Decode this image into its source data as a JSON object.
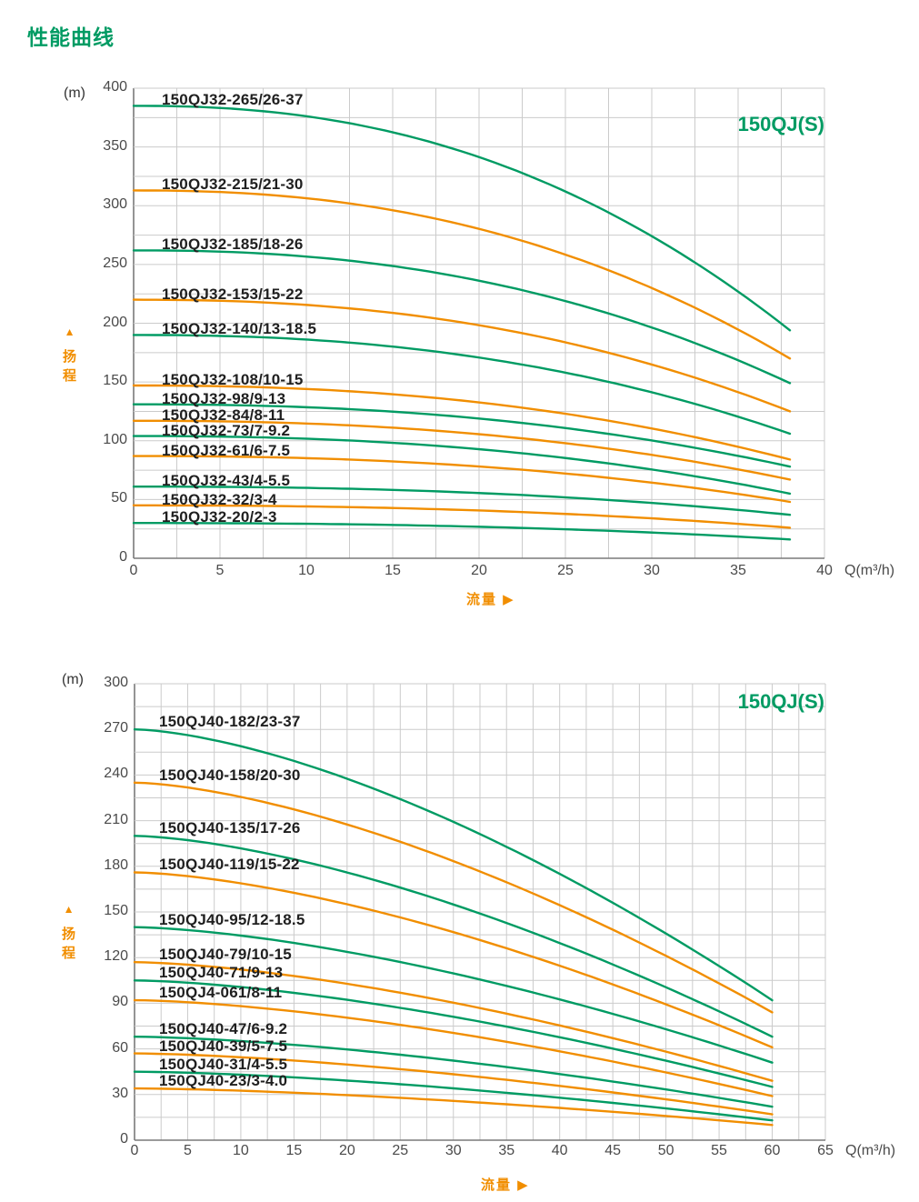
{
  "page_title": "性能曲线",
  "colors": {
    "green": "#009B63",
    "orange": "#F18E00",
    "label_text": "#1F1F1F",
    "tick_text": "#4A4A4A",
    "grid": "#CBCBCB",
    "axis": "#7A7A7A"
  },
  "chart_data": [
    {
      "type": "line",
      "title": "150QJ(S)",
      "x_axis": {
        "label": "流量",
        "direction_marker": "▶",
        "unit": "Q(m³/h)",
        "min": 0,
        "max": 40,
        "tick_step": 5,
        "grid_minor_step": 2.5,
        "tick_labels": [
          0,
          5,
          10,
          15,
          20,
          25,
          30,
          35,
          40
        ]
      },
      "y_axis": {
        "label": "扬程",
        "direction_marker": "▲",
        "unit": "(m)",
        "min": 0,
        "max": 400,
        "tick_step": 50,
        "grid_minor_step": 25,
        "tick_labels": [
          0,
          50,
          100,
          150,
          200,
          250,
          300,
          350,
          400
        ]
      },
      "grid": true,
      "legend_position": "labels-above-curves",
      "flow_end_m3h": 38,
      "curve_shape_exponent": 2.3,
      "series": [
        {
          "label": "150QJ32-265/26-37",
          "color": "green",
          "head_at_zero_flow_m": 385,
          "head_at_flow_end_m": 194
        },
        {
          "label": "150QJ32-215/21-30",
          "color": "orange",
          "head_at_zero_flow_m": 313,
          "head_at_flow_end_m": 170
        },
        {
          "label": "150QJ32-185/18-26",
          "color": "green",
          "head_at_zero_flow_m": 262,
          "head_at_flow_end_m": 149
        },
        {
          "label": "150QJ32-153/15-22",
          "color": "orange",
          "head_at_zero_flow_m": 220,
          "head_at_flow_end_m": 125
        },
        {
          "label": "150QJ32-140/13-18.5",
          "color": "green",
          "head_at_zero_flow_m": 190,
          "head_at_flow_end_m": 106
        },
        {
          "label": "150QJ32-108/10-15",
          "color": "orange",
          "head_at_zero_flow_m": 147,
          "head_at_flow_end_m": 84
        },
        {
          "label": "150QJ32-98/9-13",
          "color": "green",
          "head_at_zero_flow_m": 131,
          "head_at_flow_end_m": 78
        },
        {
          "label": "150QJ32-84/8-11",
          "color": "orange",
          "head_at_zero_flow_m": 117,
          "head_at_flow_end_m": 67
        },
        {
          "label": "150QJ32-73/7-9.2",
          "color": "green",
          "head_at_zero_flow_m": 104,
          "head_at_flow_end_m": 55
        },
        {
          "label": "150QJ32-61/6-7.5",
          "color": "orange",
          "head_at_zero_flow_m": 87,
          "head_at_flow_end_m": 48
        },
        {
          "label": "150QJ32-43/4-5.5",
          "color": "green",
          "head_at_zero_flow_m": 61,
          "head_at_flow_end_m": 37
        },
        {
          "label": "150QJ32-32/3-4",
          "color": "orange",
          "head_at_zero_flow_m": 45,
          "head_at_flow_end_m": 26
        },
        {
          "label": "150QJ32-20/2-3",
          "color": "green",
          "head_at_zero_flow_m": 30,
          "head_at_flow_end_m": 16
        }
      ]
    },
    {
      "type": "line",
      "title": "150QJ(S)",
      "x_axis": {
        "label": "流量",
        "direction_marker": "▶",
        "unit": "Q(m³/h)",
        "min": 0,
        "max": 65,
        "tick_step": 5,
        "grid_minor_step": 2.5,
        "tick_labels": [
          0,
          5,
          10,
          15,
          20,
          25,
          30,
          35,
          40,
          45,
          50,
          55,
          60,
          65
        ]
      },
      "y_axis": {
        "label": "扬程",
        "direction_marker": "▲",
        "unit": "(m)",
        "min": 0,
        "max": 300,
        "tick_step": 30,
        "grid_minor_step": 15,
        "tick_labels": [
          0,
          30,
          60,
          90,
          120,
          150,
          180,
          210,
          240,
          270,
          300
        ]
      },
      "grid": true,
      "legend_position": "labels-above-curves",
      "flow_end_m3h": 60,
      "curve_shape_exponent": 1.55,
      "series": [
        {
          "label": "150QJ40-182/23-37",
          "color": "green",
          "head_at_zero_flow_m": 270,
          "head_at_flow_end_m": 92
        },
        {
          "label": "150QJ40-158/20-30",
          "color": "orange",
          "head_at_zero_flow_m": 235,
          "head_at_flow_end_m": 84
        },
        {
          "label": "150QJ40-135/17-26",
          "color": "green",
          "head_at_zero_flow_m": 200,
          "head_at_flow_end_m": 68
        },
        {
          "label": "150QJ40-119/15-22",
          "color": "orange",
          "head_at_zero_flow_m": 176,
          "head_at_flow_end_m": 61
        },
        {
          "label": "150QJ40-95/12-18.5",
          "color": "green",
          "head_at_zero_flow_m": 140,
          "head_at_flow_end_m": 51
        },
        {
          "label": "150QJ40-79/10-15",
          "color": "orange",
          "head_at_zero_flow_m": 117,
          "head_at_flow_end_m": 39
        },
        {
          "label": "150QJ40-71/9-13",
          "color": "green",
          "head_at_zero_flow_m": 105,
          "head_at_flow_end_m": 35
        },
        {
          "label": "150QJ4-061/8-11",
          "color": "orange",
          "head_at_zero_flow_m": 92,
          "head_at_flow_end_m": 29
        },
        {
          "label": "150QJ40-47/6-9.2",
          "color": "green",
          "head_at_zero_flow_m": 68,
          "head_at_flow_end_m": 22
        },
        {
          "label": "150QJ40-39/5-7.5",
          "color": "orange",
          "head_at_zero_flow_m": 57,
          "head_at_flow_end_m": 17
        },
        {
          "label": "150QJ40-31/4-5.5",
          "color": "green",
          "head_at_zero_flow_m": 45,
          "head_at_flow_end_m": 13
        },
        {
          "label": "150QJ40-23/3-4.0",
          "color": "orange",
          "head_at_zero_flow_m": 34,
          "head_at_flow_end_m": 10
        }
      ]
    }
  ]
}
